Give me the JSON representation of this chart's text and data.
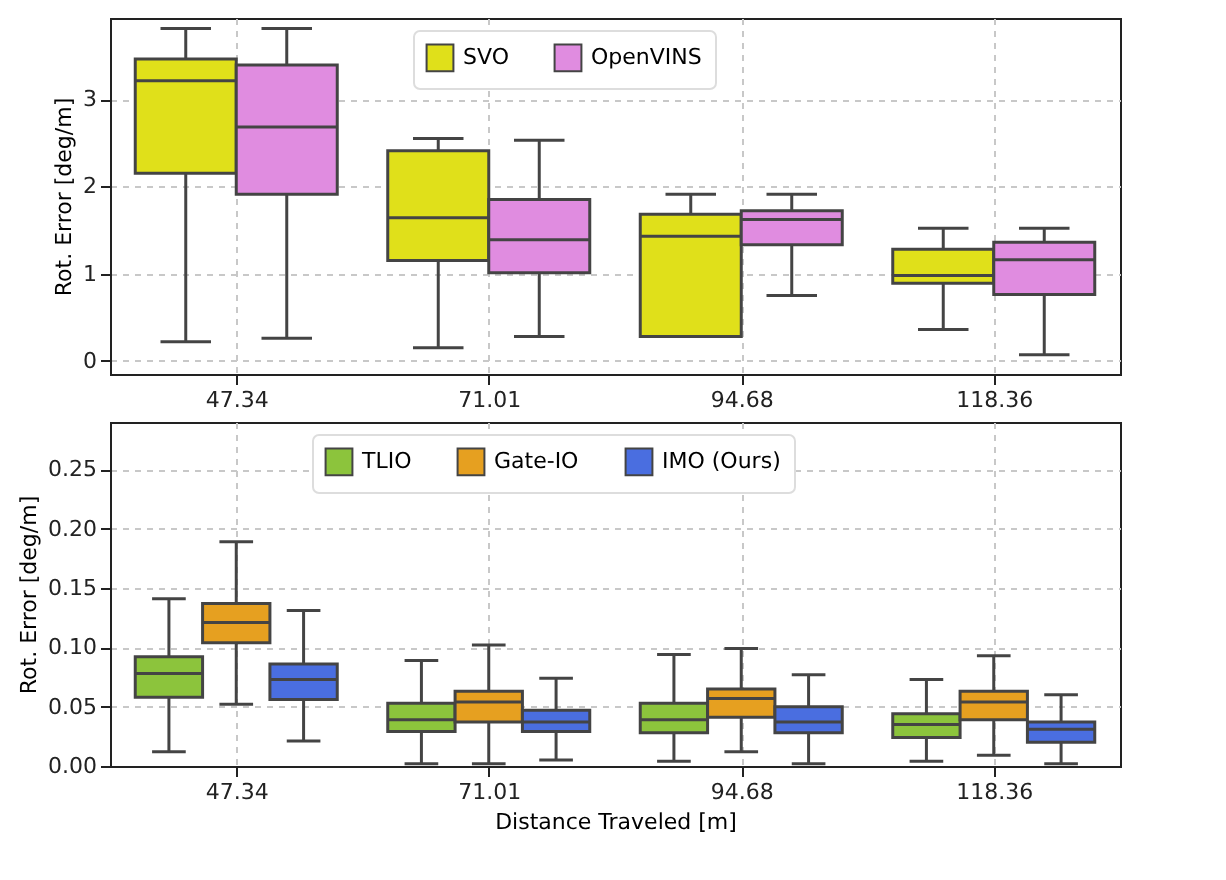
{
  "chart_data": [
    {
      "type": "box",
      "ylabel": "Rot. Error [deg/m]",
      "categories": [
        "47.34",
        "71.01",
        "94.68",
        "118.36"
      ],
      "ylim": [
        -0.15,
        3.93
      ],
      "yticks": [
        0,
        1,
        2,
        3
      ],
      "grid": true,
      "legend": "top",
      "series": [
        {
          "name": "SVO",
          "color": "#e0e01a",
          "boxes": [
            {
              "low": 0.22,
              "q1": 2.15,
              "median": 3.21,
              "q3": 3.46,
              "high": 3.81
            },
            {
              "low": 0.15,
              "q1": 1.15,
              "median": 1.64,
              "q3": 2.41,
              "high": 2.55
            },
            {
              "low": 0.28,
              "q1": 0.28,
              "median": 1.43,
              "q3": 1.68,
              "high": 1.91
            },
            {
              "low": 0.36,
              "q1": 0.89,
              "median": 0.98,
              "q3": 1.28,
              "high": 1.52
            }
          ]
        },
        {
          "name": "OpenVINS",
          "color": "#e08ce0",
          "boxes": [
            {
              "low": 0.26,
              "q1": 1.91,
              "median": 2.68,
              "q3": 3.39,
              "high": 3.81
            },
            {
              "low": 0.28,
              "q1": 1.01,
              "median": 1.39,
              "q3": 1.85,
              "high": 2.53
            },
            {
              "low": 0.75,
              "q1": 1.33,
              "median": 1.62,
              "q3": 1.72,
              "high": 1.91
            },
            {
              "low": 0.07,
              "q1": 0.76,
              "median": 1.16,
              "q3": 1.36,
              "high": 1.52
            }
          ]
        }
      ]
    },
    {
      "type": "box",
      "xlabel": "Distance Traveled [m]",
      "ylabel": "Rot. Error [deg/m]",
      "categories": [
        "47.34",
        "71.01",
        "94.68",
        "118.36"
      ],
      "ylim": [
        0,
        0.29
      ],
      "yticks": [
        {
          "value": 0,
          "label": "0.00"
        },
        {
          "value": 0.05,
          "label": "0.05"
        },
        {
          "value": 0.1,
          "label": "0.10"
        },
        {
          "value": 0.15,
          "label": "0.15"
        },
        {
          "value": 0.2,
          "label": "0.20"
        },
        {
          "value": 0.25,
          "label": "0.25"
        }
      ],
      "grid": true,
      "legend": "top",
      "series": [
        {
          "name": "TLIO",
          "color": "#8cc43c",
          "boxes": [
            {
              "low": 0.012,
              "q1": 0.058,
              "median": 0.078,
              "q3": 0.092,
              "high": 0.141
            },
            {
              "low": 0.002,
              "q1": 0.029,
              "median": 0.039,
              "q3": 0.053,
              "high": 0.089
            },
            {
              "low": 0.004,
              "q1": 0.028,
              "median": 0.039,
              "q3": 0.053,
              "high": 0.094
            },
            {
              "low": 0.004,
              "q1": 0.024,
              "median": 0.035,
              "q3": 0.044,
              "high": 0.073
            }
          ]
        },
        {
          "name": "Gate-IO",
          "color": "#e6a020",
          "boxes": [
            {
              "low": 0.052,
              "q1": 0.104,
              "median": 0.121,
              "q3": 0.137,
              "high": 0.189
            },
            {
              "low": 0.002,
              "q1": 0.037,
              "median": 0.054,
              "q3": 0.063,
              "high": 0.102
            },
            {
              "low": 0.012,
              "q1": 0.041,
              "median": 0.057,
              "q3": 0.065,
              "high": 0.099
            },
            {
              "low": 0.009,
              "q1": 0.039,
              "median": 0.054,
              "q3": 0.063,
              "high": 0.093
            }
          ]
        },
        {
          "name": "IMO (Ours)",
          "color": "#4a6ee0",
          "boxes": [
            {
              "low": 0.021,
              "q1": 0.056,
              "median": 0.073,
              "q3": 0.086,
              "high": 0.131
            },
            {
              "low": 0.005,
              "q1": 0.029,
              "median": 0.037,
              "q3": 0.047,
              "high": 0.074
            },
            {
              "low": 0.002,
              "q1": 0.028,
              "median": 0.037,
              "q3": 0.05,
              "high": 0.077
            },
            {
              "low": 0.002,
              "q1": 0.02,
              "median": 0.031,
              "q3": 0.037,
              "high": 0.06
            }
          ]
        }
      ]
    }
  ]
}
